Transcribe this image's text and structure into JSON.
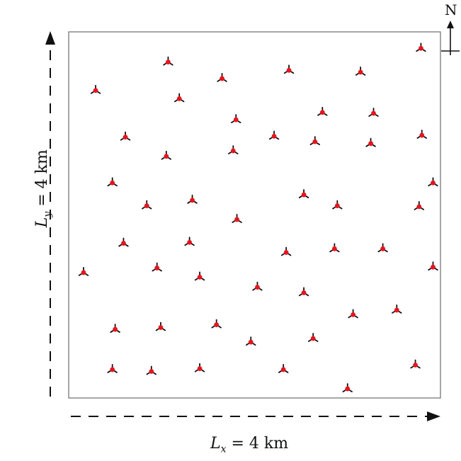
{
  "domain_box": {
    "x_extent_km": 4,
    "y_extent_km": 4
  },
  "labels": {
    "lx_symbol": "L",
    "lx_sub": "x",
    "lx_rest": " = 4 km",
    "ly_symbol": "L",
    "ly_sub": "y",
    "ly_rest": " = 4 km",
    "north": "N"
  },
  "colors": {
    "frame": "#777777",
    "arrow": "#111111",
    "turbine_hub": "#e8141c",
    "turbine_blade": "#111111"
  },
  "turbines_km": [
    [
      1.07,
      3.67
    ],
    [
      2.37,
      3.58
    ],
    [
      3.14,
      3.56
    ],
    [
      3.79,
      3.82
    ],
    [
      0.29,
      3.36
    ],
    [
      1.19,
      3.27
    ],
    [
      1.65,
      3.49
    ],
    [
      1.8,
      3.04
    ],
    [
      2.73,
      3.12
    ],
    [
      3.28,
      3.11
    ],
    [
      0.61,
      2.85
    ],
    [
      1.05,
      2.64
    ],
    [
      1.77,
      2.7
    ],
    [
      2.21,
      2.86
    ],
    [
      2.65,
      2.8
    ],
    [
      3.25,
      2.78
    ],
    [
      3.8,
      2.87
    ],
    [
      3.92,
      2.35
    ],
    [
      0.47,
      2.35
    ],
    [
      0.84,
      2.1
    ],
    [
      1.33,
      2.16
    ],
    [
      1.81,
      1.95
    ],
    [
      2.53,
      2.22
    ],
    [
      2.89,
      2.1
    ],
    [
      3.77,
      2.09
    ],
    [
      0.59,
      1.69
    ],
    [
      1.3,
      1.7
    ],
    [
      2.34,
      1.59
    ],
    [
      2.86,
      1.63
    ],
    [
      3.38,
      1.63
    ],
    [
      3.92,
      1.43
    ],
    [
      0.16,
      1.37
    ],
    [
      0.95,
      1.42
    ],
    [
      1.41,
      1.32
    ],
    [
      2.03,
      1.21
    ],
    [
      2.53,
      1.15
    ],
    [
      3.06,
      0.91
    ],
    [
      3.53,
      0.96
    ],
    [
      0.5,
      0.75
    ],
    [
      0.99,
      0.77
    ],
    [
      1.59,
      0.8
    ],
    [
      1.96,
      0.61
    ],
    [
      2.63,
      0.65
    ],
    [
      0.47,
      0.31
    ],
    [
      0.89,
      0.29
    ],
    [
      1.41,
      0.32
    ],
    [
      2.31,
      0.31
    ],
    [
      3.73,
      0.36
    ],
    [
      3.0,
      0.1
    ]
  ]
}
